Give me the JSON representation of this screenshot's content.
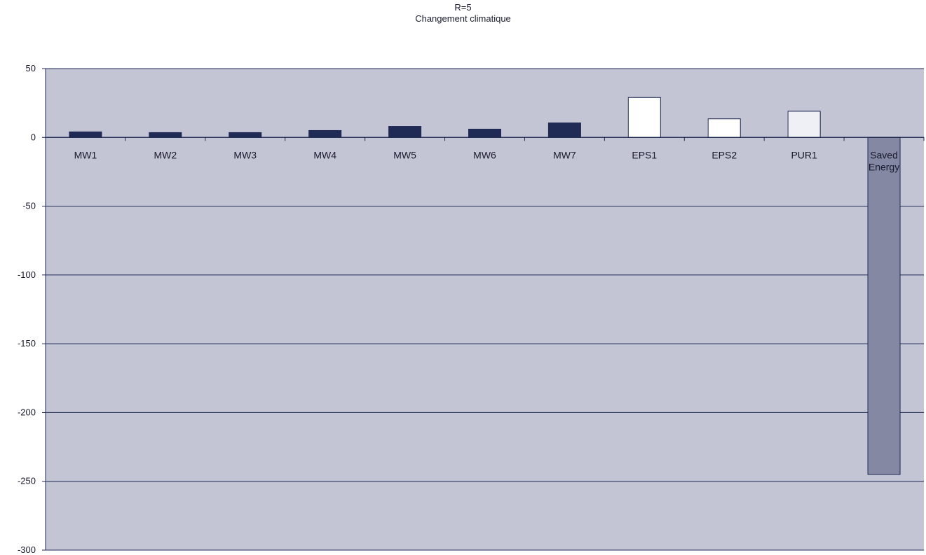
{
  "chart_data": {
    "type": "bar",
    "title": "R=5",
    "subtitle": "Changement climatique",
    "xlabel": "",
    "ylabel": "",
    "ylim": [
      -300,
      50
    ],
    "yticks": [
      50,
      0,
      -50,
      -100,
      -150,
      -200,
      -250,
      -300
    ],
    "grid": true,
    "legend": "none",
    "categories": [
      "MW1",
      "MW2",
      "MW3",
      "MW4",
      "MW5",
      "MW6",
      "MW7",
      "EPS1",
      "EPS2",
      "PUR1",
      "Saved Energy"
    ],
    "values": [
      4,
      3.5,
      3.5,
      5,
      8,
      6,
      10.5,
      29,
      13.5,
      19,
      -245
    ],
    "bar_colors": [
      "#1f2a55",
      "#1f2a55",
      "#1f2a55",
      "#1f2a55",
      "#1f2a55",
      "#1f2a55",
      "#1f2a55",
      "#ffffff",
      "#ffffff",
      "#eef0f5",
      "#8488a3"
    ],
    "plot_background": "#c3c4d4",
    "axis_color": "#1f2a55"
  }
}
